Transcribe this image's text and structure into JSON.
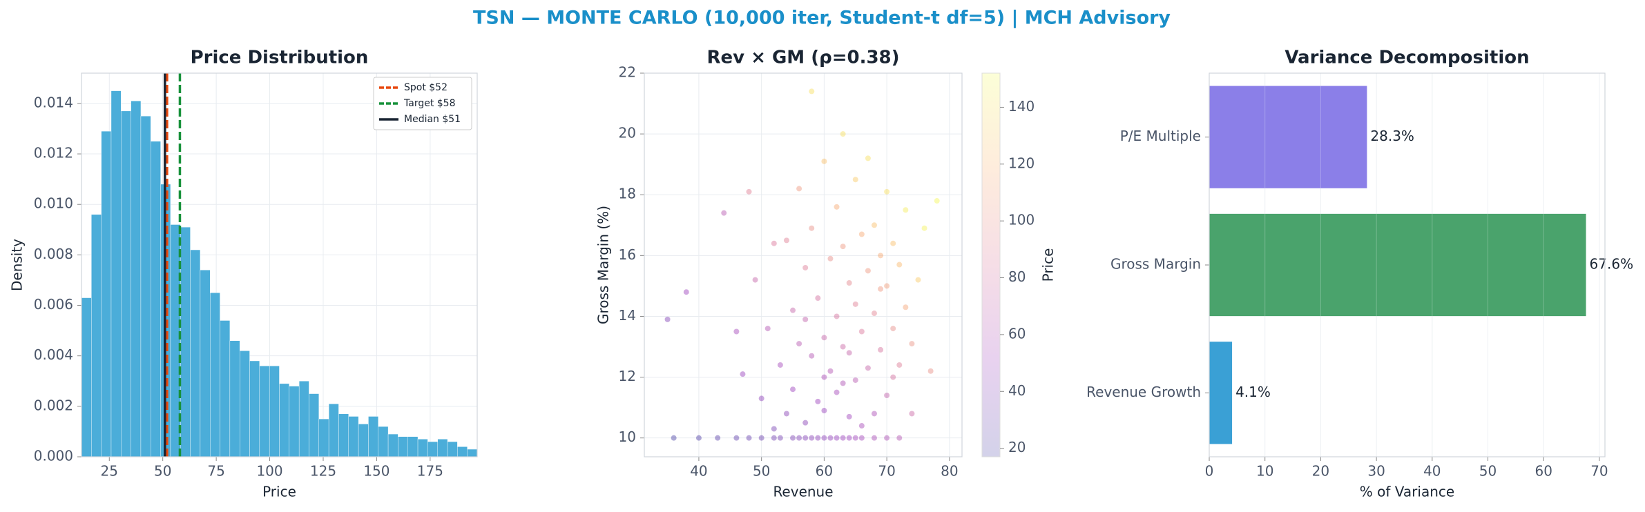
{
  "title": "TSN — MONTE CARLO (10,000 iter, Student-t df=5) | MCH Advisory",
  "chart_data": [
    {
      "type": "histogram",
      "title": "Price Distribution",
      "xlabel": "Price",
      "ylabel": "Density",
      "color": "#4badd9",
      "grid": true,
      "legend": "upper right",
      "bins": [
        12,
        16.625,
        21.25,
        25.875,
        30.5,
        35.125,
        39.75,
        44.375,
        49,
        53.625,
        58.25,
        62.875,
        67.5,
        72.125,
        76.75,
        81.375,
        86,
        90.625,
        95.25,
        99.875,
        104.5,
        109.125,
        113.75,
        118.375,
        123,
        127.625,
        132.25,
        136.875,
        141.5,
        146.125,
        150.75,
        155.375,
        160,
        164.625,
        169.25,
        173.875,
        178.5,
        183.125,
        187.75,
        192.375,
        197
      ],
      "values": [
        0.0063,
        0.0096,
        0.0129,
        0.0145,
        0.0137,
        0.0141,
        0.0135,
        0.0125,
        0.0108,
        0.0092,
        0.0091,
        0.0082,
        0.0074,
        0.0065,
        0.0054,
        0.0046,
        0.0042,
        0.0038,
        0.0036,
        0.0036,
        0.0029,
        0.0028,
        0.003,
        0.0025,
        0.0015,
        0.0021,
        0.0017,
        0.0016,
        0.0013,
        0.0016,
        0.0012,
        0.0009,
        0.0008,
        0.0008,
        0.0007,
        0.0006,
        0.0007,
        0.0006,
        0.0004,
        0.0003
      ],
      "vlines": [
        {
          "name": "Spot $52",
          "value": 52,
          "color": "#e8490f",
          "style": "dashed"
        },
        {
          "name": "Target $58",
          "value": 58,
          "color": "#17913a",
          "style": "dashed"
        },
        {
          "name": "Median $51",
          "value": 51,
          "color": "#1a2533",
          "style": "solid"
        }
      ],
      "xlim": [
        12,
        197
      ],
      "xticks": [
        25,
        50,
        75,
        100,
        125,
        150,
        175
      ],
      "ylim": [
        0,
        0.0152
      ],
      "yticks": [
        {
          "value": 0,
          "label": "0.000"
        },
        {
          "value": 0.002,
          "label": "0.002"
        },
        {
          "value": 0.004,
          "label": "0.004"
        },
        {
          "value": 0.006,
          "label": "0.006"
        },
        {
          "value": 0.008,
          "label": "0.008"
        },
        {
          "value": 0.01,
          "label": "0.010"
        },
        {
          "value": 0.012,
          "label": "0.012"
        },
        {
          "value": 0.014,
          "label": "0.014"
        }
      ]
    },
    {
      "type": "scatter",
      "title": "Rev × GM (ρ=0.38)",
      "xlabel": "Revenue",
      "ylabel": "Gross Margin (%)",
      "colormap": "plasma",
      "grid": true,
      "x": [
        36,
        40,
        43,
        46,
        48,
        50,
        52,
        53,
        55,
        56,
        57,
        58,
        59,
        60,
        61,
        62,
        63,
        64,
        65,
        66,
        68,
        70,
        72,
        38,
        35,
        44,
        47,
        49,
        50,
        51,
        52,
        53,
        54,
        55,
        55,
        56,
        56,
        57,
        57,
        58,
        58,
        59,
        59,
        60,
        60,
        60,
        61,
        61,
        62,
        62,
        62,
        63,
        63,
        63,
        64,
        64,
        64,
        65,
        65,
        65,
        66,
        66,
        67,
        67,
        67,
        68,
        68,
        68,
        69,
        69,
        70,
        70,
        70,
        71,
        71,
        72,
        72,
        73,
        73,
        74,
        75,
        76,
        77,
        78,
        58,
        46,
        48,
        52,
        54,
        66,
        60,
        57,
        63,
        69,
        71,
        74
      ],
      "values": [
        10,
        10,
        10,
        10,
        10,
        10,
        10,
        10,
        10,
        10,
        10,
        10,
        10,
        10,
        10,
        10,
        10,
        10,
        10,
        10,
        10,
        10,
        10,
        14.8,
        13.9,
        17.4,
        12.1,
        15.2,
        11.3,
        13.6,
        16.4,
        12.4,
        10.8,
        14.2,
        11.6,
        18.2,
        13.1,
        15.6,
        10.5,
        12.7,
        16.9,
        11.2,
        14.6,
        19.1,
        13.3,
        10.9,
        15.9,
        12.2,
        17.6,
        11.5,
        14,
        20,
        13,
        16.3,
        10.7,
        12.8,
        15.1,
        18.5,
        11.9,
        14.4,
        13.5,
        16.7,
        12.3,
        15.5,
        19.2,
        10.8,
        14.1,
        17,
        12.9,
        16,
        11.4,
        15,
        18.1,
        13.6,
        16.4,
        12.4,
        15.7,
        14.3,
        17.5,
        13.1,
        15.2,
        16.9,
        12.2,
        17.8,
        21.4,
        13.5,
        18.1,
        10.3,
        16.5,
        10.4,
        12,
        13.9,
        11.8,
        14.9,
        12,
        10.8
      ],
      "color_values": [
        19,
        22,
        25,
        28,
        30,
        32,
        35,
        36,
        38,
        40,
        41,
        43,
        44,
        45,
        47,
        48,
        50,
        51,
        53,
        54,
        57,
        60,
        63,
        50,
        40,
        65,
        48,
        72,
        45,
        62,
        85,
        55,
        42,
        72,
        50,
        105,
        65,
        88,
        42,
        62,
        100,
        50,
        80,
        125,
        72,
        48,
        98,
        62,
        115,
        55,
        82,
        140,
        75,
        105,
        52,
        72,
        95,
        130,
        65,
        90,
        85,
        115,
        72,
        105,
        140,
        58,
        92,
        125,
        82,
        115,
        70,
        108,
        140,
        98,
        125,
        88,
        122,
        112,
        145,
        102,
        130,
        148,
        100,
        150,
        140,
        55,
        90,
        36,
        90,
        56,
        58,
        70,
        60,
        105,
        80,
        75
      ],
      "xlim": [
        31.3,
        82
      ],
      "xticks": [
        40,
        50,
        60,
        70,
        80
      ],
      "ylim": [
        9.38,
        22
      ],
      "yticks": [
        10,
        12,
        14,
        16,
        18,
        20,
        22
      ],
      "clabel": "Price",
      "clim": [
        17,
        152
      ],
      "cticks": [
        20,
        40,
        60,
        80,
        100,
        120,
        140
      ]
    },
    {
      "type": "hbar",
      "title": "Variance Decomposition",
      "xlabel": "% of Variance",
      "grid": true,
      "categories": [
        "P/E Multiple",
        "Gross Margin",
        "Revenue Growth"
      ],
      "values": [
        28.3,
        67.6,
        4.1
      ],
      "value_labels": [
        "28.3%",
        "67.6%",
        "4.1%"
      ],
      "colors": [
        "#8b7fe8",
        "#4aa36c",
        "#3aa0d5"
      ],
      "xlim": [
        0,
        71
      ],
      "xticks": [
        0,
        10,
        20,
        30,
        40,
        50,
        60,
        70
      ]
    }
  ]
}
